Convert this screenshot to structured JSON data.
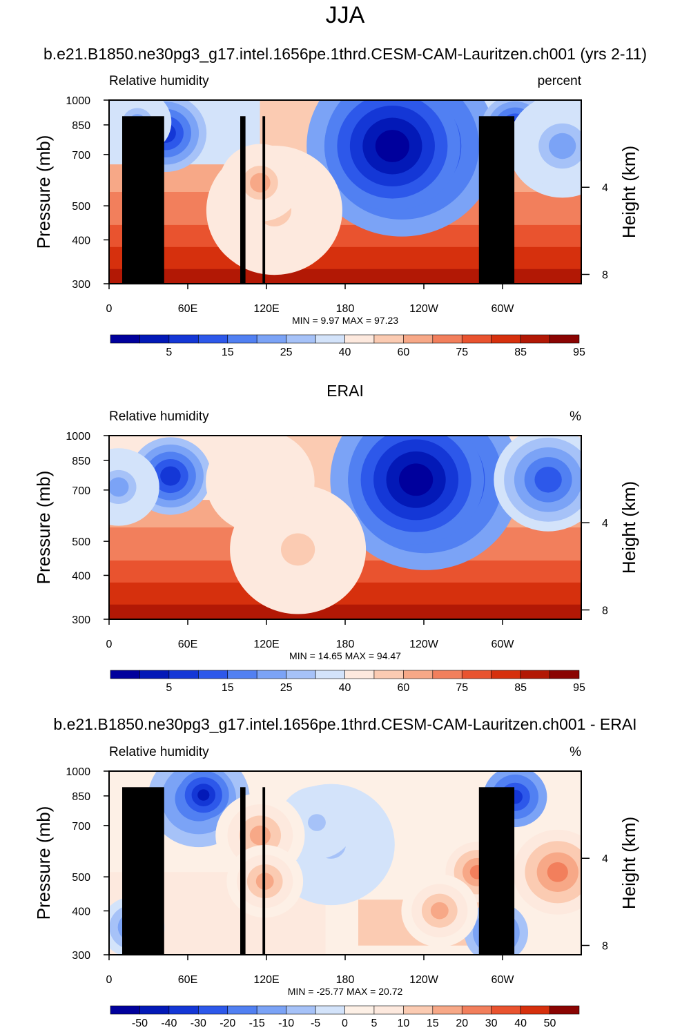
{
  "figure_title": "JJA",
  "chart_data": [
    {
      "type": "heatmap",
      "title": "b.e21.B1850.ne30pg3_g17.intel.1656pe.1thrd.CESM-CAM-Lauritzen.ch001 (yrs 2-11)",
      "left_label": "Relative humidity",
      "right_label": "percent",
      "ylabel": "Pressure (mb)",
      "ylabel_right": "Height (km)",
      "x_ticks": [
        "0",
        "60E",
        "120E",
        "180",
        "120W",
        "60W"
      ],
      "x_tick_values": [
        0,
        60,
        120,
        180,
        240,
        300
      ],
      "xlim": [
        0,
        360
      ],
      "y_ticks": [
        "300",
        "400",
        "500",
        "700",
        "850",
        "1000"
      ],
      "y_tick_values": [
        300,
        400,
        500,
        700,
        850,
        1000
      ],
      "ylim": [
        1000,
        300
      ],
      "height_ticks": [
        "8",
        "4"
      ],
      "height_tick_values": [
        8,
        4
      ],
      "stats": {
        "min_label": "MIN =",
        "min": "9.97",
        "max_label": "MAX =",
        "max": "97.23"
      },
      "colorbar_levels": [
        "5",
        "15",
        "25",
        "40",
        "60",
        "75",
        "85",
        "95"
      ],
      "colorbar_colors": [
        "#00009c",
        "#0319b7",
        "#1437d6",
        "#2d58ea",
        "#5180f2",
        "#7ba3f6",
        "#a6c2f8",
        "#d3e3fa",
        "#fde9de",
        "#fbcbb2",
        "#f7a887",
        "#f27f5c",
        "#e9532f",
        "#d6300d",
        "#b21805",
        "#8a0402"
      ]
    },
    {
      "type": "heatmap",
      "title": "ERAI",
      "left_label": "Relative humidity",
      "right_label": "%",
      "ylabel": "Pressure (mb)",
      "ylabel_right": "Height (km)",
      "x_ticks": [
        "0",
        "60E",
        "120E",
        "180",
        "120W",
        "60W"
      ],
      "x_tick_values": [
        0,
        60,
        120,
        180,
        240,
        300
      ],
      "xlim": [
        0,
        360
      ],
      "y_ticks": [
        "300",
        "400",
        "500",
        "700",
        "850",
        "1000"
      ],
      "y_tick_values": [
        300,
        400,
        500,
        700,
        850,
        1000
      ],
      "ylim": [
        1000,
        300
      ],
      "height_ticks": [
        "8",
        "4"
      ],
      "height_tick_values": [
        8,
        4
      ],
      "stats": {
        "min_label": "MIN =",
        "min": "14.65",
        "max_label": "MAX =",
        "max": "94.47"
      },
      "colorbar_levels": [
        "5",
        "15",
        "25",
        "40",
        "60",
        "75",
        "85",
        "95"
      ],
      "colorbar_colors": [
        "#00009c",
        "#0319b7",
        "#1437d6",
        "#2d58ea",
        "#5180f2",
        "#7ba3f6",
        "#a6c2f8",
        "#d3e3fa",
        "#fde9de",
        "#fbcbb2",
        "#f7a887",
        "#f27f5c",
        "#e9532f",
        "#d6300d",
        "#b21805",
        "#8a0402"
      ]
    },
    {
      "type": "heatmap",
      "title": "b.e21.B1850.ne30pg3_g17.intel.1656pe.1thrd.CESM-CAM-Lauritzen.ch001 - ERAI",
      "left_label": "Relative humidity",
      "right_label": "%",
      "ylabel": "Pressure (mb)",
      "ylabel_right": "Height (km)",
      "x_ticks": [
        "0",
        "60E",
        "120E",
        "180",
        "120W",
        "60W"
      ],
      "x_tick_values": [
        0,
        60,
        120,
        180,
        240,
        300
      ],
      "xlim": [
        0,
        360
      ],
      "y_ticks": [
        "300",
        "400",
        "500",
        "700",
        "850",
        "1000"
      ],
      "y_tick_values": [
        300,
        400,
        500,
        700,
        850,
        1000
      ],
      "ylim": [
        1000,
        300
      ],
      "height_ticks": [
        "8",
        "4"
      ],
      "height_tick_values": [
        8,
        4
      ],
      "stats": {
        "min_label": "MIN =",
        "min": "-25.77",
        "max_label": "MAX =",
        "max": "20.72"
      },
      "colorbar_levels": [
        "-50",
        "-40",
        "-30",
        "-20",
        "-15",
        "-10",
        "-5",
        "0",
        "5",
        "10",
        "15",
        "20",
        "30",
        "40",
        "50"
      ],
      "colorbar_colors": [
        "#00009c",
        "#0319b7",
        "#1437d6",
        "#2d58ea",
        "#5180f2",
        "#7ba3f6",
        "#a6c2f8",
        "#d3e3fa",
        "#fdf0e6",
        "#fde9de",
        "#fbcbb2",
        "#f7a887",
        "#f27f5c",
        "#e9532f",
        "#d6300d",
        "#8a0402"
      ]
    }
  ]
}
